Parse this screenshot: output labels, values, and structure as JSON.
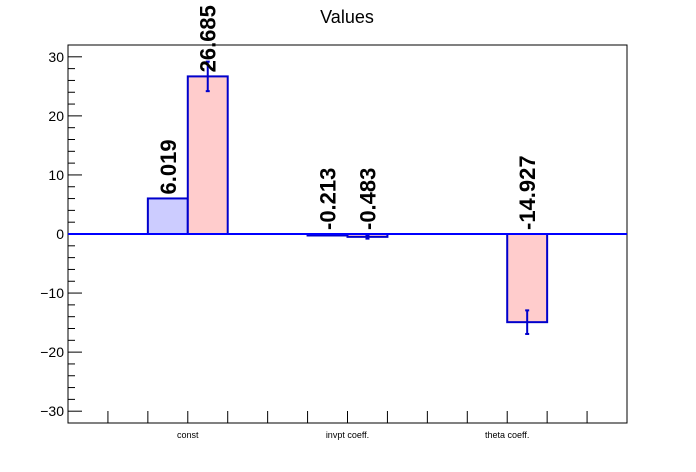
{
  "chart_data": {
    "type": "bar",
    "title": "Values",
    "categories": [
      "const",
      "invpt coeff.",
      "theta coeff."
    ],
    "ylim": [
      -32,
      32
    ],
    "yticks": [
      -30,
      -20,
      -10,
      0,
      10,
      20,
      30
    ],
    "ytick_labels": [
      "−30",
      "−20",
      "−10",
      "0",
      "10",
      "20",
      "30"
    ],
    "xlabel": "",
    "ylabel": "",
    "grid": false,
    "colors": {
      "series_a_fill": "#ccccff",
      "series_b_fill": "#ffcccc",
      "bar_edge": "#0000cc",
      "zero_line": "#0000ff"
    },
    "series": [
      {
        "values": [
          6.019,
          -0.213,
          null
        ],
        "labels": [
          "6.019",
          "-0.213",
          ""
        ],
        "errors": [
          null,
          null,
          null
        ]
      },
      {
        "values": [
          26.685,
          -0.483,
          -14.927
        ],
        "labels": [
          "26.685",
          "-0.483",
          "-14.927"
        ],
        "errors": [
          2.5,
          0.3,
          2.0
        ]
      }
    ]
  }
}
